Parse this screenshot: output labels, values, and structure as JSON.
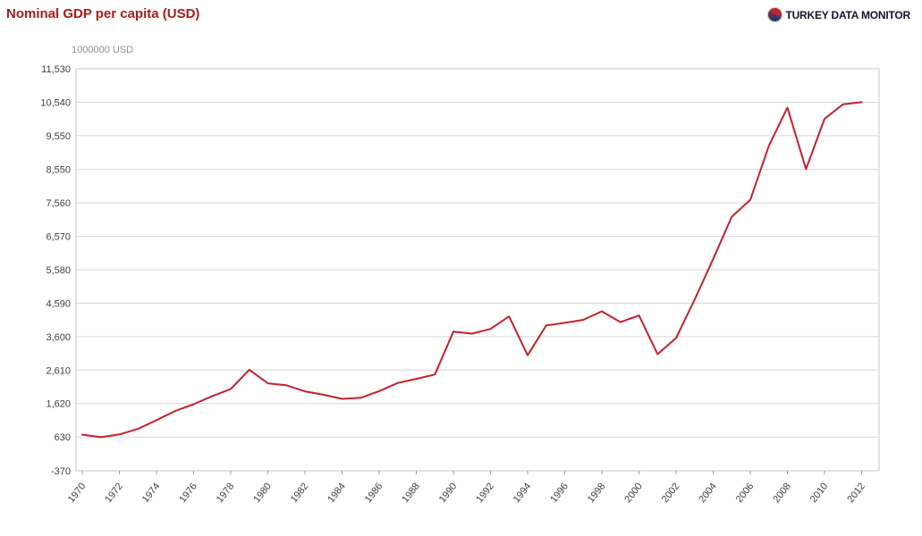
{
  "header": {
    "title": "Nominal GDP per capita (USD)"
  },
  "brand": {
    "name": "TURKEY DATA MONITOR",
    "icon": "pie-chart-icon"
  },
  "chart_data": {
    "type": "line",
    "title": "Nominal GDP per capita (USD)",
    "unit_label": "1000000 USD",
    "x": [
      1970,
      1971,
      1972,
      1973,
      1974,
      1975,
      1976,
      1977,
      1978,
      1979,
      1980,
      1981,
      1982,
      1983,
      1984,
      1985,
      1986,
      1987,
      1988,
      1989,
      1990,
      1991,
      1992,
      1993,
      1994,
      1995,
      1996,
      1997,
      1998,
      1999,
      2000,
      2001,
      2002,
      2003,
      2004,
      2005,
      2006,
      2007,
      2008,
      2009,
      2010,
      2011,
      2012
    ],
    "values": [
      700,
      625,
      705,
      870,
      1130,
      1400,
      1600,
      1840,
      2050,
      2620,
      2220,
      2160,
      1980,
      1880,
      1760,
      1790,
      1990,
      2230,
      2350,
      2480,
      3750,
      3690,
      3830,
      4200,
      3050,
      3930,
      4010,
      4100,
      4350,
      4030,
      4230,
      3080,
      3560,
      4700,
      5900,
      7150,
      7650,
      9250,
      10380,
      8560,
      10050,
      10480,
      10540
    ],
    "y_ticks": [
      -370,
      630,
      1620,
      2610,
      3600,
      4590,
      5580,
      6570,
      7560,
      8550,
      9550,
      10540,
      11530
    ],
    "y_tick_labels": [
      "-370",
      "630",
      "1,620",
      "2,610",
      "3,600",
      "4,590",
      "5,580",
      "6,570",
      "7,560",
      "8,550",
      "9,550",
      "10,540",
      "11,530"
    ],
    "x_tick_labels": [
      "1970",
      "1972",
      "1974",
      "1976",
      "1978",
      "1980",
      "1982",
      "1984",
      "1986",
      "1988",
      "1990",
      "1992",
      "1994",
      "1996",
      "1998",
      "2000",
      "2002",
      "2004",
      "2006",
      "2008",
      "2010",
      "2012"
    ],
    "ylim": [
      -370,
      11530
    ],
    "xlim": [
      1969.7,
      2012.9
    ],
    "grid": "horizontal",
    "legend": "none",
    "line_color": "#c4202e",
    "colors": {
      "title": "#a61c1c",
      "grid": "#d6d6d6",
      "border": "#c9c9c9",
      "axis_text": "#3f3f3f",
      "unit_text": "#8f8f8f",
      "brand_text": "#15152c"
    }
  }
}
